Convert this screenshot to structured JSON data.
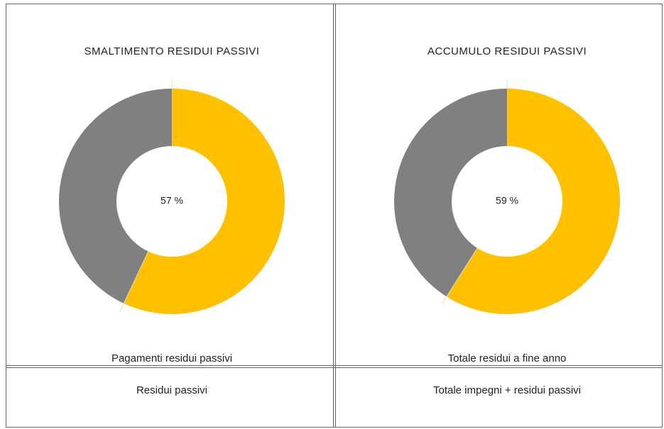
{
  "chart_data": [
    {
      "type": "pie",
      "donut": true,
      "title": "SMALTIMENTO RESIDUI PASSIVI",
      "values": [
        57,
        43
      ],
      "value_labels": [
        "57 %",
        null
      ],
      "colors": [
        "#ffc000",
        "#808080"
      ]
    },
    {
      "type": "pie",
      "donut": true,
      "title": "ACCUMULO RESIDUI PASSIVI",
      "values": [
        59,
        41
      ],
      "value_labels": [
        "59 %",
        null
      ],
      "colors": [
        "#ffc000",
        "#808080"
      ]
    }
  ],
  "table": {
    "rows": [
      [
        "Pagamenti residui passivi",
        "Totale residui a fine anno"
      ],
      [
        "Residui passivi",
        "Totale impegni + residui passivi"
      ]
    ]
  }
}
